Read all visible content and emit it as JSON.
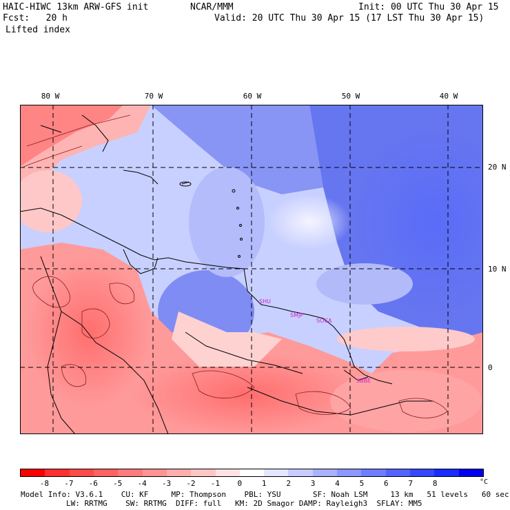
{
  "header": {
    "model_title": "HAIC-HIWC 13km ARW-GFS init",
    "org": "NCAR/MMM",
    "init": "Init: 00 UTC Thu 30 Apr 15",
    "fcst": "Fcst:   20 h",
    "valid": "Valid: 20 UTC Thu 30 Apr 15 (17 LST Thu 30 Apr 15)",
    "field": "Lifted index"
  },
  "map": {
    "lon_labels": [
      "80 W",
      "70 W",
      "60 W",
      "50 W",
      "40 W"
    ],
    "lat_labels": [
      "20 N",
      "10 N",
      "0"
    ],
    "station_labels": [
      "SHU",
      "SMJP",
      "SOCA",
      "SBBE"
    ],
    "colors": {
      "frame": "#000000",
      "coast": "#000000",
      "contour": "#8b1a1a",
      "station": "#cc22cc",
      "grid": "#000000"
    }
  },
  "colorbar": {
    "ticks": [
      "-8",
      "-7",
      "-6",
      "-5",
      "-4",
      "-3",
      "-2",
      "-1",
      "0",
      "1",
      "2",
      "3",
      "4",
      "5",
      "6",
      "7",
      "8"
    ],
    "unit": "°C",
    "colors": [
      "#ff0000",
      "#ff3030",
      "#ff4a4a",
      "#ff6262",
      "#ff7b7b",
      "#ff9494",
      "#ffadad",
      "#ffc6c6",
      "#ffe3e3",
      "#ffffff",
      "#e3e6ff",
      "#c6ccff",
      "#a9b2ff",
      "#8c98ff",
      "#6f7eff",
      "#5264ff",
      "#3548ff",
      "#1a2cff",
      "#0000ee"
    ]
  },
  "model_info": {
    "line1": "Model Info: V3.6.1    CU: KF     MP: Thompson    PBL: YSU       SF: Noah LSM     13 km   51 levels   60 sec",
    "line2": "LW: RRTMG    SW: RRTMG  DIFF: full   KM: 2D Smagor DAMP: Rayleigh3  SFLAY: MM5"
  }
}
